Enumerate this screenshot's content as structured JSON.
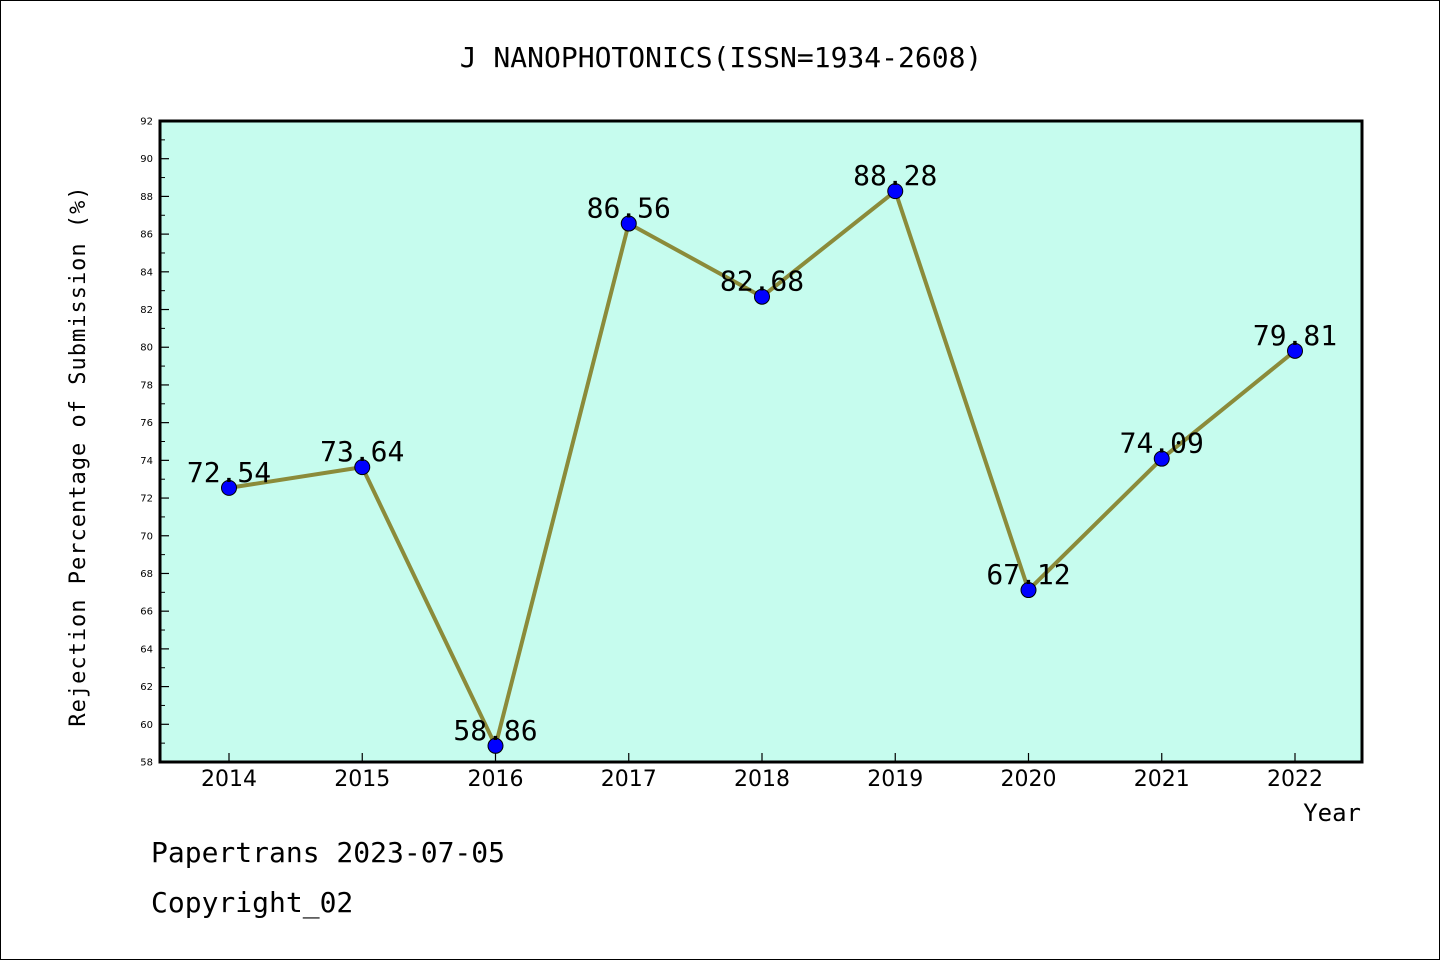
{
  "footer": {
    "source_date": "Papertrans 2023-07-05",
    "copyright": "Copyright_02"
  },
  "chart_data": {
    "type": "line",
    "title": "J NANOPHOTONICS(ISSN=1934-2608)",
    "xlabel": "Year",
    "ylabel": "Rejection Percentage of Submission (%)",
    "categories": [
      "2014",
      "2015",
      "2016",
      "2017",
      "2018",
      "2019",
      "2020",
      "2021",
      "2022"
    ],
    "values": [
      72.54,
      73.64,
      58.86,
      86.56,
      82.68,
      88.28,
      67.12,
      74.09,
      79.81
    ],
    "data_labels": [
      "72.54",
      "73.64",
      "58.86",
      "86.56",
      "82.68",
      "88.28",
      "67.12",
      "74.09",
      "79.81"
    ],
    "ylim": [
      58,
      92
    ],
    "y_ticks": [
      58,
      60,
      62,
      64,
      66,
      68,
      70,
      72,
      74,
      76,
      78,
      80,
      82,
      84,
      86,
      88,
      90,
      92
    ],
    "grid": false,
    "legend": "none",
    "colors": {
      "plot_background": "#c6fcee",
      "line": "#8b8b3a",
      "marker": "#0000ff",
      "axis": "#000000"
    }
  }
}
